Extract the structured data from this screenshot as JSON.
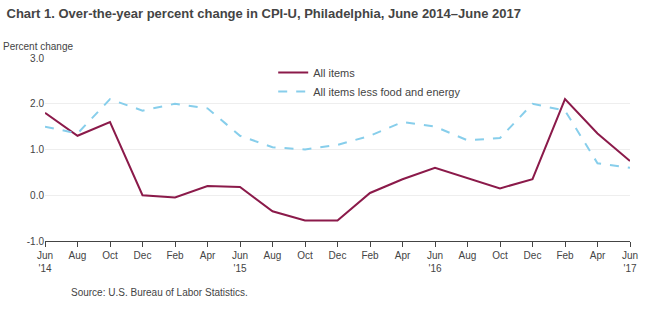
{
  "chart_data": {
    "type": "line",
    "title": "Chart 1. Over-the-year percent change in CPI-U, Philadelphia, June 2014–June 2017",
    "y_label": "Percent change",
    "source": "Source: U.S. Bureau of Labor Statistics.",
    "categories": [
      "Jun\n'14",
      "Aug",
      "Oct",
      "Dec",
      "Feb",
      "Apr",
      "Jun\n'15",
      "Aug",
      "Oct",
      "Dec",
      "Feb",
      "Apr",
      "Jun\n'16",
      "Aug",
      "Oct",
      "Dec",
      "Feb",
      "Apr",
      "Jun\n'17"
    ],
    "series": [
      {
        "name": "All items",
        "color": "#8B1A4A",
        "line_style": "solid",
        "values": [
          1.8,
          1.3,
          1.6,
          0.0,
          -0.05,
          0.2,
          0.18,
          -0.35,
          -0.55,
          -0.55,
          0.05,
          0.35,
          0.6,
          0.38,
          0.15,
          0.35,
          2.1,
          1.35,
          0.75
        ]
      },
      {
        "name": "All items less food and energy",
        "color": "#87CEEB",
        "line_style": "dashed",
        "values": [
          1.5,
          1.35,
          2.1,
          1.85,
          2.0,
          1.9,
          1.3,
          1.05,
          1.0,
          1.1,
          1.3,
          1.6,
          1.5,
          1.2,
          1.25,
          2.0,
          1.85,
          0.7,
          0.6
        ]
      }
    ],
    "ylim": [
      -1.0,
      3.0
    ],
    "yticks": [
      {
        "value": -1.0,
        "label": "-1.0"
      },
      {
        "value": 0.0,
        "label": "0.0"
      },
      {
        "value": 1.0,
        "label": "1.0"
      },
      {
        "value": 2.0,
        "label": "2.0"
      },
      {
        "value": 3.0,
        "label": "3.0"
      }
    ],
    "grid": true,
    "legend": "upper right"
  }
}
